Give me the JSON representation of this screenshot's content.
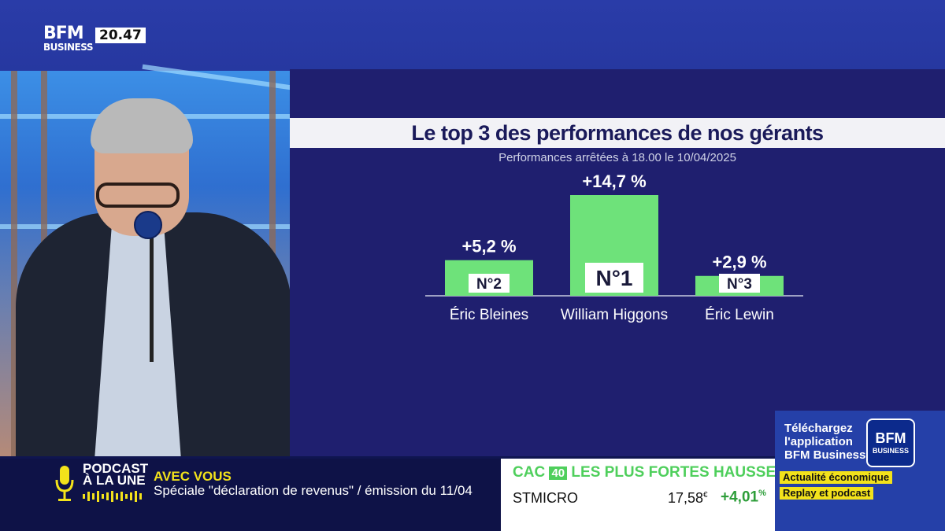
{
  "channel": {
    "logo_top": "BFM",
    "logo_bottom": "BUSINESS",
    "time": "20.47"
  },
  "chart_data": {
    "type": "bar",
    "title": "Le top 3 des performances de nos gérants",
    "subtitle": "Performances arrêtées à 18.00 le 10/04/2025",
    "categories": [
      "Éric Bleines",
      "William Higgons",
      "Éric Lewin"
    ],
    "values": [
      5.2,
      14.7,
      2.9
    ],
    "value_labels": [
      "+5,2 %",
      "+14,7 %",
      "+2,9 %"
    ],
    "rank_labels": [
      "N°2",
      "N°1",
      "N°3"
    ],
    "bar_color": "#6ee27a"
  },
  "ticker": {
    "podcast_label_1": "PODCAST",
    "podcast_label_2": "À LA UNE",
    "show": "AVEC VOUS",
    "episode": "Spéciale \"déclaration de revenus\" / émission du 11/04"
  },
  "market": {
    "index_name": "CAC",
    "index_number": "40",
    "heading": "LES PLUS FORTES HAUSSES",
    "stock": "STMICRO",
    "price": "17,58",
    "currency": "€",
    "change": "+4,01",
    "change_unit": "%"
  },
  "promo": {
    "line1": "Téléchargez",
    "line2": "l'application",
    "line3": "BFM Business",
    "logo_top": "BFM",
    "logo_bottom": "BUSINESS",
    "tag1": "Actualité économique",
    "tag2": "Replay et podcast"
  }
}
